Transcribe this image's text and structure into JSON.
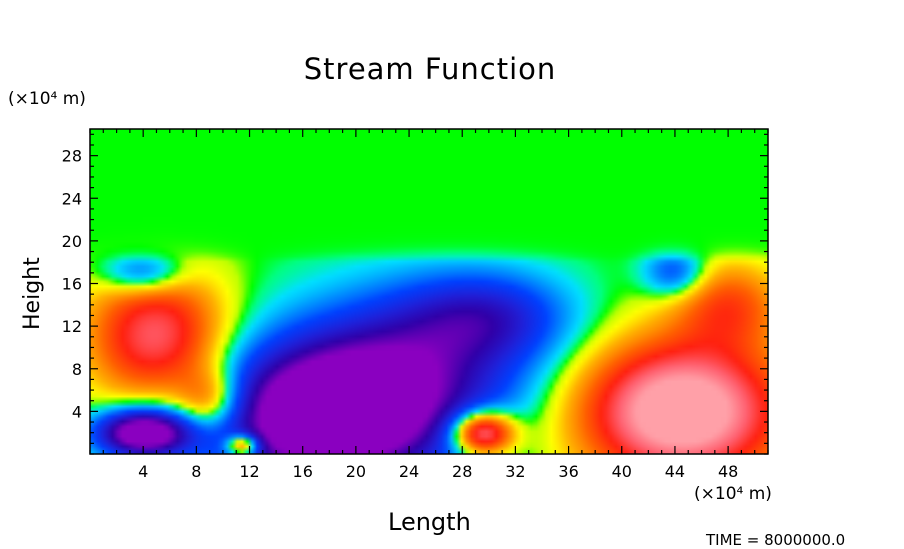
{
  "chart_data": {
    "type": "heatmap",
    "title": "Stream Function",
    "xlabel": "Length",
    "ylabel": "Height",
    "x_unit": "(×10⁴ m)",
    "y_unit": "(×10⁴ m)",
    "xlim": [
      0,
      51
    ],
    "ylim": [
      0,
      30.5
    ],
    "x_ticks": [
      4,
      8,
      12,
      16,
      20,
      24,
      28,
      32,
      36,
      40,
      44,
      48
    ],
    "y_ticks": [
      4,
      8,
      12,
      16,
      20,
      24,
      28
    ],
    "colormap": [
      "#0000ff",
      "#00e0ff",
      "#00ff00",
      "#ffff00",
      "#ff0000",
      "#ff9999"
    ],
    "features": [
      {
        "kind": "min",
        "x": 18,
        "y": 3.5,
        "level": -1.0
      },
      {
        "kind": "max",
        "x": 44.5,
        "y": 4,
        "level": 1.0
      },
      {
        "kind": "max",
        "x": 29.5,
        "y": 2,
        "level": 0.75
      },
      {
        "kind": "max",
        "x": 6,
        "y": 12,
        "level": 0.6
      },
      {
        "kind": "min",
        "x": 4,
        "y": 2,
        "level": -0.8
      }
    ]
  },
  "footer": "TIME = 8000000.0"
}
